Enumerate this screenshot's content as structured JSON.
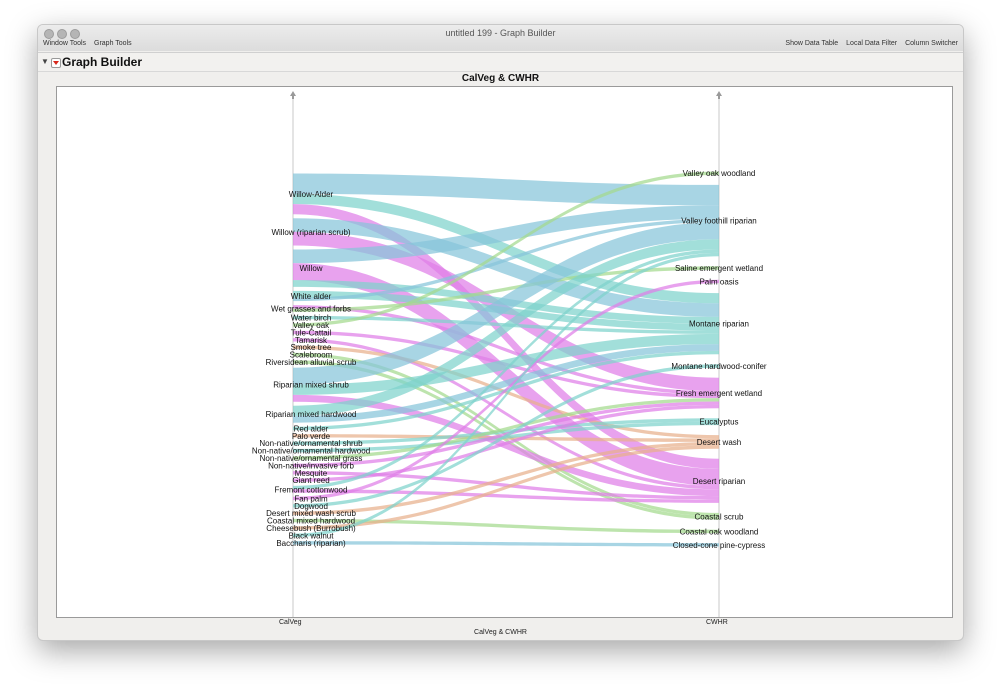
{
  "window": {
    "title": "untitled 199 - Graph Builder",
    "menus_left": [
      "Window Tools",
      "Graph Tools"
    ],
    "menus_right": [
      "Show Data Table",
      "Local Data Filter",
      "Column Switcher"
    ]
  },
  "panel": {
    "title": "Graph Builder"
  },
  "chart_data": {
    "type": "parallel-sets",
    "title": "CalVeg & CWHR",
    "xlabel": "CalVeg & CWHR",
    "axes": [
      "CalVeg",
      "CWHR"
    ],
    "left_categories": [
      "Willow-Alder",
      "Willow (riparian scrub)",
      "Willow",
      "White alder",
      "Wet grasses and forbs",
      "Water birch",
      "Valley oak",
      "Tule-Cattail",
      "Tamarisk",
      "Smoke tree",
      "Scalebroom",
      "Riversidean alluvial scrub",
      "Riparian mixed shrub",
      "Riparian mixed hardwood",
      "Red alder",
      "Palo verde",
      "Non-native/ornamental shrub",
      "Non-native/ornamental hardwood",
      "Non-native/ornamental grass",
      "Non-native/invasive forb",
      "Mesquite",
      "Giant reed",
      "Fremont cottonwood",
      "Fan palm",
      "Dogwood",
      "Desert mixed wash scrub",
      "Coastal mixed hardwood",
      "Cheesebush (Burrobush)",
      "Black walnut",
      "Baccharis (riparian)"
    ],
    "right_categories": [
      "Valley oak woodland",
      "Valley foothill riparian",
      "Saline emergent wetland",
      "Palm oasis",
      "Montane riparian",
      "Montane hardwood-conifer",
      "Fresh emergent wetland",
      "Eucalyptus",
      "Desert wash",
      "Desert riparian",
      "Coastal scrub",
      "Coastal oak woodland",
      "Closed-cone pine-cypress"
    ],
    "colors": {
      "blue": "#86c5da",
      "magenta": "#df7ee8",
      "teal": "#7ed3cc",
      "green": "#a3d98e",
      "orange": "#e8b08c"
    },
    "flows": [
      {
        "from": "Willow-Alder",
        "to": "Valley foothill riparian",
        "value": 6,
        "color": "blue"
      },
      {
        "from": "Willow-Alder",
        "to": "Montane riparian",
        "value": 3,
        "color": "teal"
      },
      {
        "from": "Willow-Alder",
        "to": "Desert riparian",
        "value": 3,
        "color": "magenta"
      },
      {
        "from": "Willow (riparian scrub)",
        "to": "Montane riparian",
        "value": 4,
        "color": "blue"
      },
      {
        "from": "Willow (riparian scrub)",
        "to": "Fresh emergent wetland",
        "value": 4,
        "color": "magenta"
      },
      {
        "from": "Willow",
        "to": "Valley foothill riparian",
        "value": 4,
        "color": "blue"
      },
      {
        "from": "Willow",
        "to": "Desert riparian",
        "value": 5,
        "color": "magenta"
      },
      {
        "from": "Willow",
        "to": "Montane riparian",
        "value": 2,
        "color": "teal"
      },
      {
        "from": "White alder",
        "to": "Montane riparian",
        "value": 2,
        "color": "teal"
      },
      {
        "from": "White alder",
        "to": "Valley foothill riparian",
        "value": 1,
        "color": "blue"
      },
      {
        "from": "Wet grasses and forbs",
        "to": "Fresh emergent wetland",
        "value": 1,
        "color": "magenta"
      },
      {
        "from": "Wet grasses and forbs",
        "to": "Saline emergent wetland",
        "value": 1,
        "color": "green"
      },
      {
        "from": "Water birch",
        "to": "Montane riparian",
        "value": 1,
        "color": "teal"
      },
      {
        "from": "Valley oak",
        "to": "Valley oak woodland",
        "value": 1,
        "color": "green"
      },
      {
        "from": "Tule-Cattail",
        "to": "Fresh emergent wetland",
        "value": 1,
        "color": "magenta"
      },
      {
        "from": "Tamarisk",
        "to": "Desert riparian",
        "value": 1,
        "color": "magenta"
      },
      {
        "from": "Smoke tree",
        "to": "Desert wash",
        "value": 1,
        "color": "orange"
      },
      {
        "from": "Scalebroom",
        "to": "Coastal scrub",
        "value": 1,
        "color": "green"
      },
      {
        "from": "Riversidean alluvial scrub",
        "to": "Coastal scrub",
        "value": 1,
        "color": "green"
      },
      {
        "from": "Riparian mixed shrub",
        "to": "Valley foothill riparian",
        "value": 5,
        "color": "blue"
      },
      {
        "from": "Riparian mixed shrub",
        "to": "Montane riparian",
        "value": 3,
        "color": "teal"
      },
      {
        "from": "Riparian mixed shrub",
        "to": "Desert riparian",
        "value": 2,
        "color": "magenta"
      },
      {
        "from": "Riparian mixed hardwood",
        "to": "Valley foothill riparian",
        "value": 3,
        "color": "teal"
      },
      {
        "from": "Riparian mixed hardwood",
        "to": "Montane riparian",
        "value": 2,
        "color": "blue"
      },
      {
        "from": "Red alder",
        "to": "Montane riparian",
        "value": 1,
        "color": "teal"
      },
      {
        "from": "Palo verde",
        "to": "Desert wash",
        "value": 1,
        "color": "orange"
      },
      {
        "from": "Non-native/ornamental shrub",
        "to": "Eucalyptus",
        "value": 1,
        "color": "teal"
      },
      {
        "from": "Non-native/ornamental hardwood",
        "to": "Eucalyptus",
        "value": 1,
        "color": "teal"
      },
      {
        "from": "Non-native/ornamental grass",
        "to": "Fresh emergent wetland",
        "value": 1,
        "color": "green"
      },
      {
        "from": "Non-native/invasive forb",
        "to": "Fresh emergent wetland",
        "value": 1,
        "color": "magenta"
      },
      {
        "from": "Mesquite",
        "to": "Desert riparian",
        "value": 1,
        "color": "magenta"
      },
      {
        "from": "Giant reed",
        "to": "Fresh emergent wetland",
        "value": 1,
        "color": "magenta"
      },
      {
        "from": "Fremont cottonwood",
        "to": "Valley foothill riparian",
        "value": 1,
        "color": "teal"
      },
      {
        "from": "Fremont cottonwood",
        "to": "Desert riparian",
        "value": 1,
        "color": "magenta"
      },
      {
        "from": "Fan palm",
        "to": "Palm oasis",
        "value": 1,
        "color": "magenta"
      },
      {
        "from": "Dogwood",
        "to": "Montane hardwood-conifer",
        "value": 1,
        "color": "teal"
      },
      {
        "from": "Desert mixed wash scrub",
        "to": "Desert wash",
        "value": 1,
        "color": "orange"
      },
      {
        "from": "Coastal mixed hardwood",
        "to": "Coastal oak woodland",
        "value": 1,
        "color": "green"
      },
      {
        "from": "Cheesebush (Burrobush)",
        "to": "Desert wash",
        "value": 1,
        "color": "orange"
      },
      {
        "from": "Black walnut",
        "to": "Valley foothill riparian",
        "value": 1,
        "color": "teal"
      },
      {
        "from": "Baccharis (riparian)",
        "to": "Closed-cone pine-cypress",
        "value": 1,
        "color": "blue"
      }
    ]
  }
}
